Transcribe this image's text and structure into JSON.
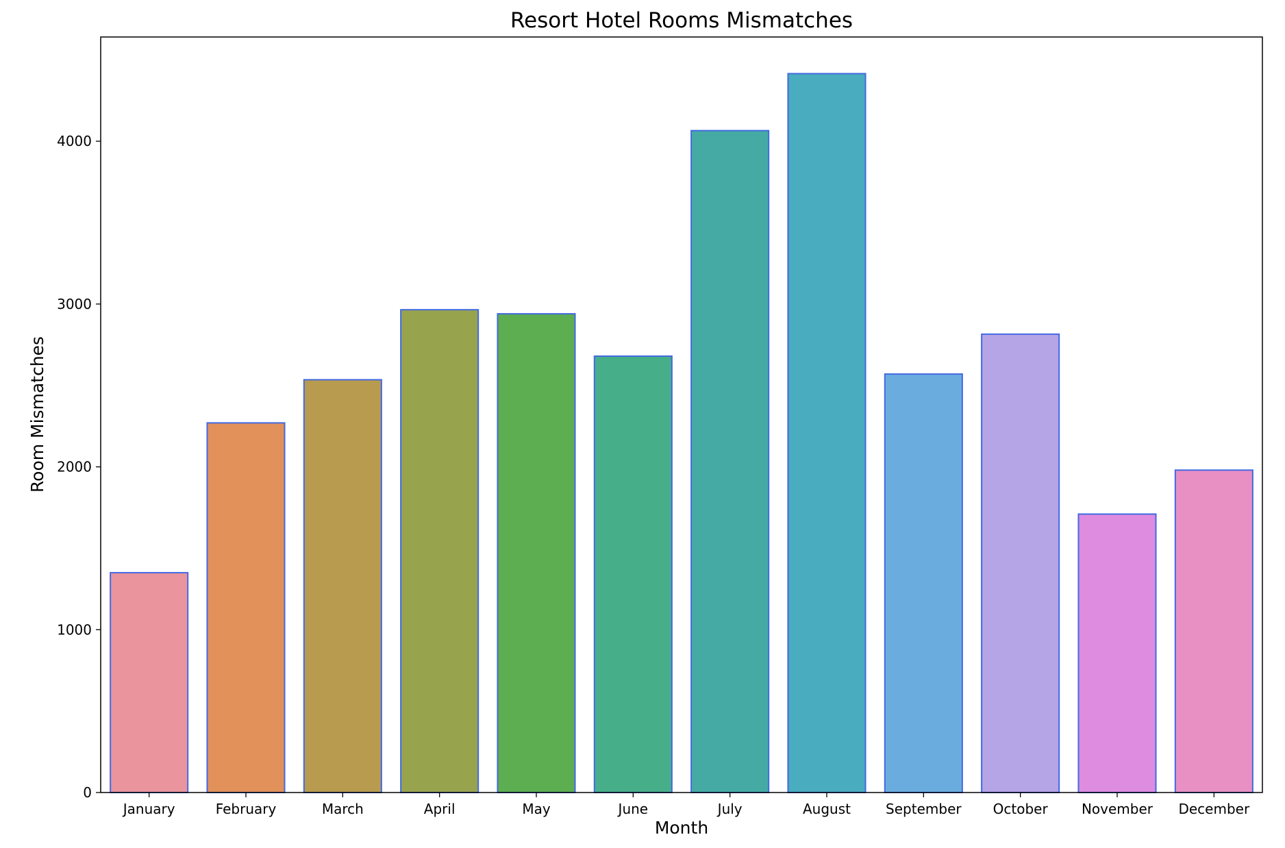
{
  "chart_data": {
    "type": "bar",
    "title": "Resort Hotel Rooms Mismatches",
    "xlabel": "Month",
    "ylabel": "Room Mismatches",
    "categories": [
      "January",
      "February",
      "March",
      "April",
      "May",
      "June",
      "July",
      "August",
      "September",
      "October",
      "November",
      "December"
    ],
    "values": [
      1350,
      2270,
      2535,
      2965,
      2940,
      2680,
      4065,
      4415,
      2570,
      2815,
      1710,
      1980
    ],
    "ylim": [
      0,
      4640
    ],
    "yticks": [
      0,
      1000,
      2000,
      3000,
      4000
    ],
    "ytick_labels": [
      "0",
      "1000",
      "2000",
      "3000",
      "4000"
    ],
    "grid": false,
    "legend": "none",
    "bar_edge_color": "#4169e1",
    "colors": [
      "#ea949d",
      "#e2915a",
      "#b89b4e",
      "#98a34e",
      "#5dae51",
      "#47ae8a",
      "#46aaa4",
      "#4aacbf",
      "#6bacdf",
      "#b5a4e6",
      "#de8ce0",
      "#e890c3"
    ]
  }
}
